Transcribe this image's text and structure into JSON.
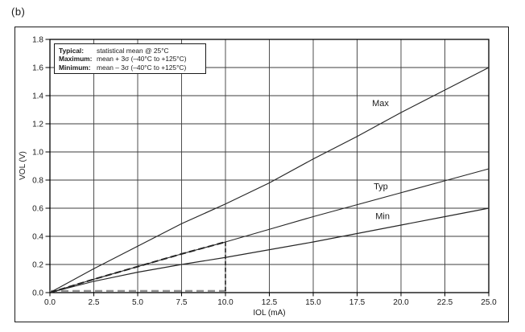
{
  "figure": {
    "label": "(b)"
  },
  "legend": {
    "rows": [
      {
        "term": "Typical:",
        "desc": "statistical mean @ 25°C"
      },
      {
        "term": "Maximum:",
        "desc": "mean + 3σ (–40°C to +125°C)"
      },
      {
        "term": "Minimum:",
        "desc": "mean – 3σ (–40°C to +125°C)"
      }
    ]
  },
  "chart_data": {
    "type": "line",
    "title": "",
    "xlabel": "IOL (mA)",
    "ylabel": "VOL (V)",
    "xlim": [
      0,
      25
    ],
    "ylim": [
      0,
      1.8
    ],
    "grid": true,
    "legend_position": "top-left",
    "xticks": [
      0,
      2.5,
      5,
      7.5,
      10,
      12.5,
      15,
      17.5,
      20,
      22.5,
      25
    ],
    "xtick_labels": [
      "0.0",
      "2.5",
      "5.0",
      "7.5",
      "10.0",
      "12.5",
      "15.0",
      "17.5",
      "20.0",
      "22.5",
      "25.0"
    ],
    "yticks": [
      0,
      0.2,
      0.4,
      0.6,
      0.8,
      1.0,
      1.2,
      1.4,
      1.6,
      1.8
    ],
    "ytick_labels": [
      "0.0",
      "0.2",
      "0.4",
      "0.6",
      "0.8",
      "1.0",
      "1.2",
      "1.4",
      "1.6",
      "1.8"
    ],
    "x": [
      0,
      2.5,
      5,
      7.5,
      10,
      12.5,
      15,
      17.5,
      20,
      22.5,
      25
    ],
    "series": [
      {
        "name": "Max",
        "y": [
          0,
          0.17,
          0.33,
          0.49,
          0.63,
          0.78,
          0.95,
          1.11,
          1.28,
          1.44,
          1.6
        ],
        "label_at": {
          "x": 18.83,
          "y": 1.35
        }
      },
      {
        "name": "Typ",
        "y": [
          0,
          0.095,
          0.185,
          0.275,
          0.36,
          0.45,
          0.54,
          0.625,
          0.71,
          0.795,
          0.88
        ],
        "label_at": {
          "x": 18.85,
          "y": 0.757
        }
      },
      {
        "name": "Min",
        "y": [
          0,
          0.08,
          0.145,
          0.2,
          0.25,
          0.305,
          0.36,
          0.42,
          0.48,
          0.54,
          0.6
        ],
        "label_at": {
          "x": 18.95,
          "y": 0.546
        }
      }
    ],
    "annotations": {
      "dashed_trace": {
        "x": [
          0,
          2.5,
          5,
          7.5,
          10
        ],
        "y": [
          0,
          0.095,
          0.185,
          0.275,
          0.36
        ],
        "color": "#222222"
      },
      "dashed_vertical": {
        "x": 10,
        "y0": 0,
        "y1": 0.36,
        "color": "#222222"
      },
      "dashed_baseline": {
        "x0": 0,
        "x1": 10.2,
        "y": 0.012,
        "color": "#8f8f8f"
      }
    },
    "colors": {
      "line": "#262626",
      "grid": "#3c3c3c",
      "frame": "#000000",
      "text": "#1a1a1a"
    }
  }
}
